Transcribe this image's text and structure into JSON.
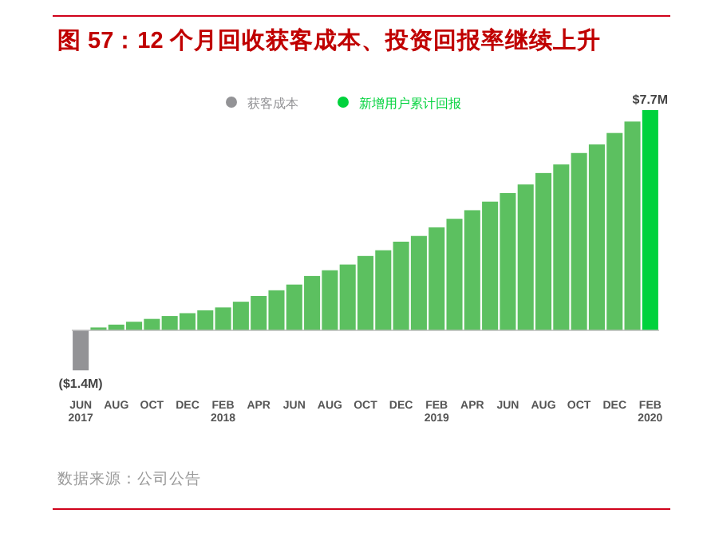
{
  "chart_data": {
    "type": "bar",
    "title": "图 57：12 个月回收获客成本、投资回报率继续上升",
    "legend": "top",
    "annotations": [
      "数据来源：公司公告"
    ],
    "categories": [
      "JUN\n2017",
      null,
      "AUG",
      null,
      "OCT",
      null,
      "DEC",
      null,
      "FEB\n2018",
      null,
      "APR",
      null,
      "JUN",
      null,
      "AUG",
      null,
      "OCT",
      null,
      "DEC",
      null,
      "FEB\n2019",
      null,
      "APR",
      null,
      "JUN",
      null,
      "AUG",
      null,
      "OCT",
      null,
      "DEC",
      null,
      "FEB\n2020"
    ],
    "series": [
      {
        "name": "获客成本",
        "color": "#939396",
        "values": [
          -1.4,
          null,
          null,
          null,
          null,
          null,
          null,
          null,
          null,
          null,
          null,
          null,
          null,
          null,
          null,
          null,
          null,
          null,
          null,
          null,
          null,
          null,
          null,
          null,
          null,
          null,
          null,
          null,
          null,
          null,
          null,
          null,
          null
        ],
        "value_labels": [
          "($1.4M)",
          null,
          null,
          null,
          null,
          null,
          null,
          null,
          null,
          null,
          null,
          null,
          null,
          null,
          null,
          null,
          null,
          null,
          null,
          null,
          null,
          null,
          null,
          null,
          null,
          null,
          null,
          null,
          null,
          null,
          null,
          null,
          null
        ]
      },
      {
        "name": "新增用户累计回报",
        "color": "#00d23c",
        "colors": [
          null,
          "#5cc060",
          "#5cc060",
          "#5cc060",
          "#5cc060",
          "#5cc060",
          "#5cc060",
          "#5cc060",
          "#5cc060",
          "#5cc060",
          "#5cc060",
          "#5cc060",
          "#5cc060",
          "#5cc060",
          "#5cc060",
          "#5cc060",
          "#5cc060",
          "#5cc060",
          "#5cc060",
          "#5cc060",
          "#5cc060",
          "#5cc060",
          "#5cc060",
          "#5cc060",
          "#5cc060",
          "#5cc060",
          "#5cc060",
          "#5cc060",
          "#5cc060",
          "#5cc060",
          "#5cc060",
          "#5cc060",
          "#00d23c"
        ],
        "values": [
          null,
          0.1,
          0.2,
          0.3,
          0.4,
          0.5,
          0.6,
          0.7,
          0.8,
          1.0,
          1.2,
          1.4,
          1.6,
          1.9,
          2.1,
          2.3,
          2.6,
          2.8,
          3.1,
          3.3,
          3.6,
          3.9,
          4.2,
          4.5,
          4.8,
          5.1,
          5.5,
          5.8,
          6.2,
          6.5,
          6.9,
          7.3,
          7.7
        ],
        "value_labels": [
          null,
          null,
          null,
          null,
          null,
          null,
          null,
          null,
          null,
          null,
          null,
          null,
          null,
          null,
          null,
          null,
          null,
          null,
          null,
          null,
          null,
          null,
          null,
          null,
          null,
          null,
          null,
          null,
          null,
          null,
          null,
          null,
          "$7.7M"
        ]
      }
    ]
  }
}
